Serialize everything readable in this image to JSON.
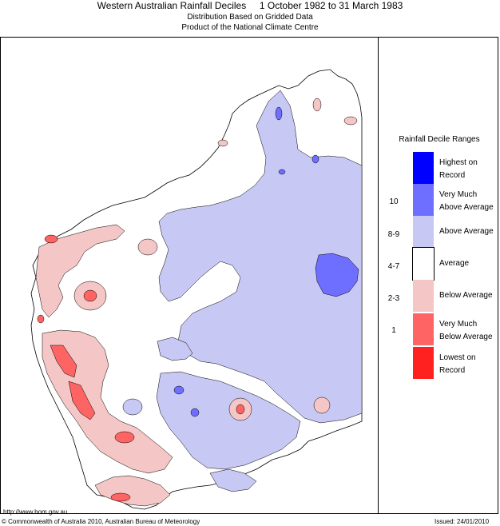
{
  "header": {
    "title": "Western Australian Rainfall Deciles     1 October 1982 to 31 March 1983",
    "subtitle_1": "Distribution Based on Gridded Data",
    "subtitle_2": "Product of the National Climate Centre"
  },
  "legend": {
    "title": "Rainfall Decile Ranges",
    "items": [
      {
        "label": "Highest on Record",
        "range": "",
        "color": "#0000ff"
      },
      {
        "label": "Very Much Above Average",
        "range": "10",
        "color": "#6f6fff"
      },
      {
        "label": "Above Average",
        "range": "8-9",
        "color": "#c8c8f5"
      },
      {
        "label": "Average",
        "range": "4-7",
        "color": "#ffffff"
      },
      {
        "label": "Below Average",
        "range": "2-3",
        "color": "#f5c6c6"
      },
      {
        "label": "Very Much Below Average",
        "range": "1",
        "color": "#ff6464"
      },
      {
        "label": "Lowest on Record",
        "range": "",
        "color": "#ff2020"
      }
    ]
  },
  "footer": {
    "url": "http://www.bom.gov.au",
    "copyright": "© Commonwealth of Australia 2010, Australian Bureau of Meteorology",
    "issued": "Issued: 24/01/2010"
  }
}
